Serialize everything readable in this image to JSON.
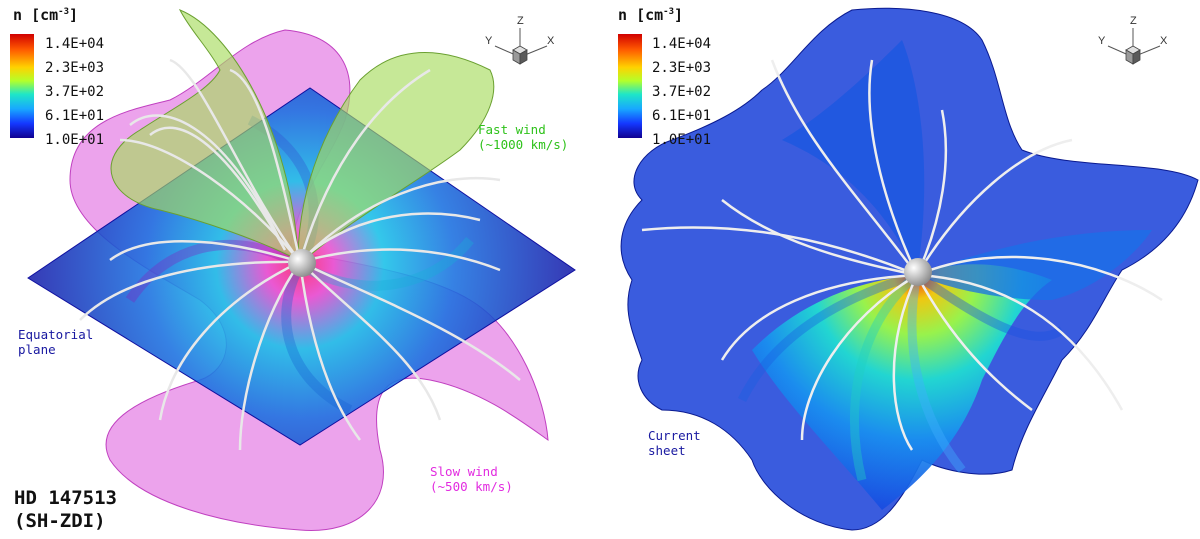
{
  "colorbar": {
    "title_var": "n",
    "title_unit_base": "[cm",
    "title_unit_exp": "-3",
    "title_unit_close": "]",
    "ticks": [
      "1.4E+04",
      "2.3E+03",
      "3.7E+02",
      "6.1E+01",
      "1.0E+01"
    ],
    "colors": [
      "#d10000",
      "#ff5a00",
      "#ffd200",
      "#b4ff2a",
      "#1ee6c8",
      "#18a8ff",
      "#1438ff",
      "#100090"
    ]
  },
  "axes": {
    "z": "Z",
    "y": "Y",
    "x": "X"
  },
  "left_panel": {
    "fast_wind_line1": "Fast wind",
    "fast_wind_line2": "(~1000 km/s)",
    "slow_wind_line1": "Slow wind",
    "slow_wind_line2": "(~500 km/s)",
    "equatorial_line1": "Equatorial",
    "equatorial_line2": "plane",
    "star_name": "HD 147513",
    "method": "(SH-ZDI)"
  },
  "right_panel": {
    "current_sheet_line1": "Current",
    "current_sheet_line2": "sheet"
  },
  "surface_colors": {
    "fast_wind": "#a8dc60",
    "slow_wind": "#e066e0",
    "plane": "#1a1aa8",
    "current_sheet": "#1840d8"
  }
}
